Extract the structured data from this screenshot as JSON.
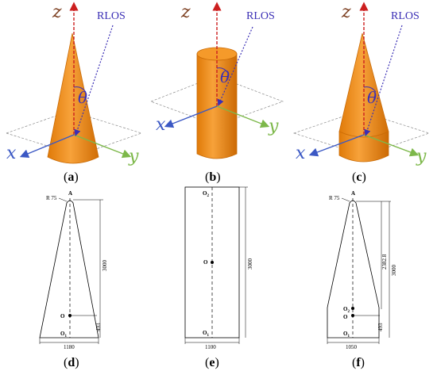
{
  "panels": [
    {
      "id": "a",
      "caption": "a"
    },
    {
      "id": "b",
      "caption": "b"
    },
    {
      "id": "c",
      "caption": "c"
    },
    {
      "id": "d",
      "caption": "d"
    },
    {
      "id": "e",
      "caption": "e"
    },
    {
      "id": "f",
      "caption": "f"
    }
  ],
  "axes": {
    "z": "z",
    "x": "x",
    "y": "y"
  },
  "rlos_label": "RLOS",
  "theta_symbol": "θ",
  "colors": {
    "cone_fill": "#f08a12",
    "cone_dark": "#c96a05",
    "z_axis": "#cc1f1f",
    "x_axis": "#3b58c4",
    "y_axis": "#7db84a",
    "rlos": "#3b2fb5",
    "z_letter": "#7a3b1c"
  },
  "drawing_d": {
    "radius_label": "R 75",
    "apex_label": "A",
    "height_label": "3000",
    "base_offset_label": "493",
    "width_label": "1180",
    "center_label": "O",
    "base_point_label": "O",
    "base_point_sub": "1"
  },
  "drawing_e": {
    "top_point_label": "O",
    "top_point_sub": "2",
    "center_label": "O",
    "height_label": "3000",
    "width_label": "1100",
    "base_point_label": "O",
    "base_point_sub": "1"
  },
  "drawing_f": {
    "radius_label": "R 75",
    "apex_label": "A",
    "upper_height_label": "2382.8",
    "height_label": "3000",
    "base_offset_label": "493",
    "width_label": "1050",
    "o2_label": "O",
    "o2_sub": "2",
    "center_label": "O",
    "base_point_label": "O",
    "base_point_sub": "1"
  }
}
